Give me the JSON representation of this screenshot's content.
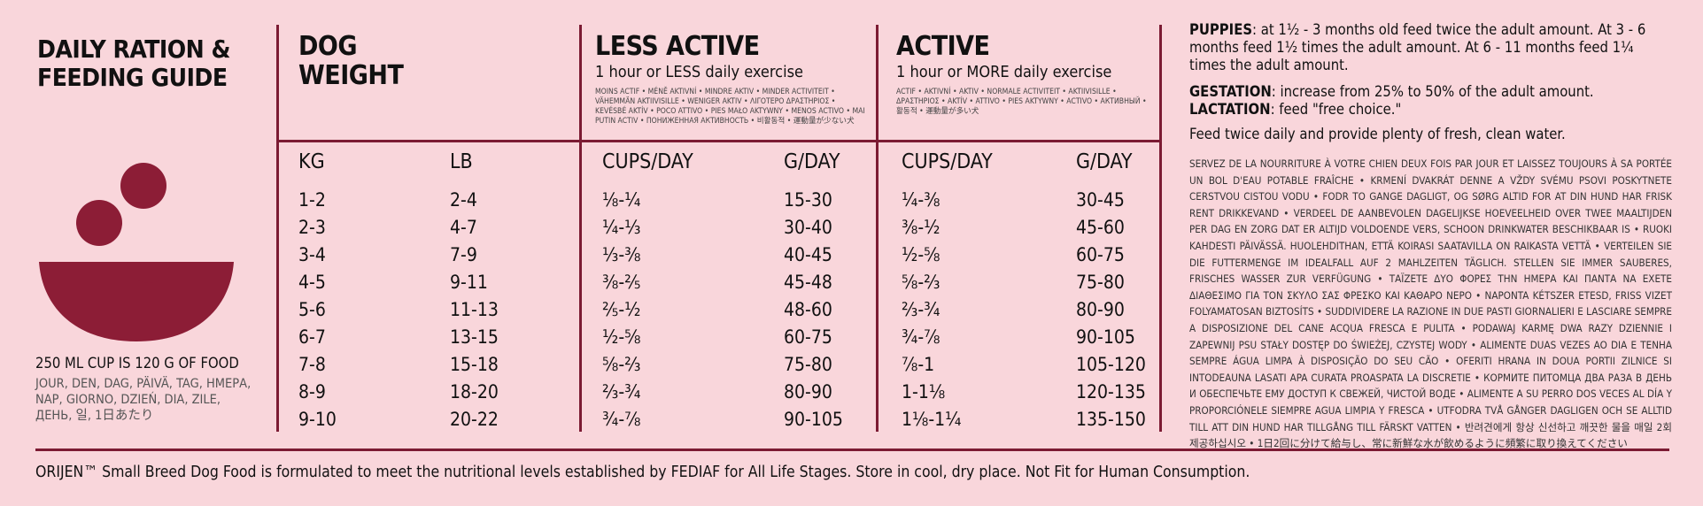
{
  "guide": {
    "title_line1": "DAILY RATION &",
    "title_line2": "FEEDING GUIDE",
    "cup_note": "250 ML CUP IS 120 G OF FOOD",
    "per_day_translations": "JOUR, DEN, DAG, PÄIVÄ, TAG, ΗΜΕΡΑ, NAP, GIORNO, DZIEŃ, DIA, ZILE, ДЕНЬ, 일, 1日あたり"
  },
  "table": {
    "dog_weight_line1": "DOG",
    "dog_weight_line2": "WEIGHT",
    "less_active": {
      "title": "LESS ACTIVE",
      "subtitle": "1 hour or LESS daily exercise",
      "translations": "MOINS ACTIF • MÉNĚ AKTIVNÍ • MINDRE AKTIV • MINDER ACTIVITEIT • VÄHEMMÄN AKTIIVISILLE • WENIGER AKTIV • ΛΙΓΟΤΕΡΟ ΔΡΑΣΤΗΡΙΟΣ • KEVÉSBÉ AKTÍV • POCO ATTIVO • PIES MAŁO AKTYWNY • MENOS ACTIVO • MAI PUTIN ACTIV • ПОНИЖЕННАЯ АКТИВНОСТЬ • 비활동적 • 運動量が少ない犬"
    },
    "active": {
      "title": "ACTIVE",
      "subtitle": "1 hour or MORE daily exercise",
      "translations": "ACTIF • AKTIVNÍ • AKTIV • NORMALE ACTIVITEIT • AKTIIVISILLE • ΔΡΑΣΤΗΡΙΟΣ • AKTÍV • ATTIVO • PIES AKTYWNY • ACTIVO • АКТИВНЫЙ • 활동적 • 運動量が多い犬"
    },
    "columns": [
      "KG",
      "LB",
      "CUPS/DAY",
      "G/DAY",
      "CUPS/DAY",
      "G/DAY"
    ],
    "rows": [
      [
        "1-2",
        "2-4",
        "⅛-¼",
        "15-30",
        "¼-⅜",
        "30-45"
      ],
      [
        "2-3",
        "4-7",
        "¼-⅓",
        "30-40",
        "⅜-½",
        "45-60"
      ],
      [
        "3-4",
        "7-9",
        "⅓-⅜",
        "40-45",
        "½-⅝",
        "60-75"
      ],
      [
        "4-5",
        "9-11",
        "⅜-⅖",
        "45-48",
        "⅝-⅔",
        "75-80"
      ],
      [
        "5-6",
        "11-13",
        "⅖-½",
        "48-60",
        "⅔-¾",
        "80-90"
      ],
      [
        "6-7",
        "13-15",
        "½-⅝",
        "60-75",
        "¾-⅞",
        "90-105"
      ],
      [
        "7-8",
        "15-18",
        "⅝-⅔",
        "75-80",
        "⅞-1",
        "105-120"
      ],
      [
        "8-9",
        "18-20",
        "⅔-¾",
        "80-90",
        "1-1⅛",
        "120-135"
      ],
      [
        "9-10",
        "20-22",
        "¾-⅞",
        "90-105",
        "1⅛-1¼",
        "135-150"
      ]
    ]
  },
  "notes": {
    "puppies_label": "PUPPIES",
    "puppies_text": ": at 1½ - 3 months old feed twice the adult amount. At 3 - 6 months feed 1½ times the adult amount. At 6 - 11 months feed 1¼ times the adult amount.",
    "gestation_label": "GESTATION",
    "gestation_text": ": increase from 25% to 50% of the adult amount.",
    "lactation_label": "LACTATION",
    "lactation_text": ": feed \"free choice.\"",
    "feeding": "Feed twice daily and provide plenty of fresh, clean water.",
    "translations": "SERVEZ DE LA NOURRITURE À VOTRE CHIEN DEUX FOIS PAR JOUR ET LAISSEZ TOUJOURS À SA PORTÉE UN BOL D'EAU POTABLE FRAÎCHE • KRMENÍ DVAKRÁT DENNE A VŽDY SVÉMU PSOVI POSKYTNETE CERSTVOU CISTOU VODU • FODR TO GANGE DAGLIGT, OG SØRG ALTID FOR AT DIN HUND HAR FRISK RENT DRIKKEVAND • VERDEEL DE AANBEVOLEN DAGELIJKSE HOEVEELHEID OVER TWEE MAALTIJDEN PER DAG EN ZORG DAT ER ALTIJD VOLDOENDE VERS, SCHOON DRINKWATER BESCHIKBAAR IS • RUOKI KAHDESTI PÄIVÄSSÄ. HUOLEHDITHAN, ETTÄ KOIRASI SAATAVILLA ON RAIKASTA VETTÄ • VERTEILEN SIE DIE FUTTERMENGE IM IDEALFALL AUF 2 MAHLZEITEN TÄGLICH. STELLEN SIE IMMER SAUBERES, FRISCHES WASSER ZUR VERFÜGUNG • ΤΑΪΖΕΤΕ ΔΥΟ ΦΟΡΕΣ ΤΗΝ ΗΜΕΡΑ ΚΑΙ ΠΑΝΤΑ ΝΑ ΕΧΕΤΕ ΔΙΑΘΕΣΙΜΟ ΓΙΑ ΤΟΝ ΣΚΥΛΟ ΣΑΣ ΦΡΕΣΚΟ ΚΑΙ ΚΑΘΑΡΟ ΝΕΡΟ • NAPONTA KÉTSZER ETESD, FRISS VIZET FOLYAMATOSAN BIZTOSÍTS • SUDDIVIDERE LA RAZIONE IN DUE PASTI GIORNALIERI E LASCIARE SEMPRE A DISPOSIZIONE DEL CANE ACQUA FRESCA E PULITA • PODAWAJ KARMĘ DWA RAZY DZIENNIE I ZAPEWNIJ PSU STAŁY DOSTĘP DO ŚWIEŻEJ, CZYSTEJ WODY • ALIMENTE DUAS VEZES AO DIA E TENHA SEMPRE ÁGUA LIMPA À DISPOSIÇÃO DO SEU CÃO • OFERITI HRANA IN DOUA PORTII ZILNICE SI INTODEAUNA LASATI APA CURATA PROASPATA LA DISCRETIE • КОРМИТЕ ПИТОМЦА ДВА РАЗА В ДЕНЬ И ОБЕСПЕЧЬТЕ ЕМУ ДОСТУП К СВЕЖЕЙ, ЧИСТОЙ ВОДЕ • ALIMENTE A SU PERRO DOS VECES AL DÍA Y PROPORCIÓNELE SIEMPRE AGUA LIMPIA Y FRESCA • UTFODRA TVÅ GÅNGER DAGLIGEN OCH SE ALLTID TILL ATT DIN HUND HAR TILLGÅNG TILL FÄRSKT VATTEN • 반려견에게 항상 신선하고 깨끗한 물을 매일 2회 제공하십시오 • 1日2回に分けて給与し、常に新鮮な水が飲めるように頻繁に取り換えてください"
  },
  "footer": "ORIJEN™ Small Breed Dog Food is formulated to meet the nutritional levels established by FEDIAF for All Life Stages. Store in cool, dry place. Not Fit for Human Consumption."
}
